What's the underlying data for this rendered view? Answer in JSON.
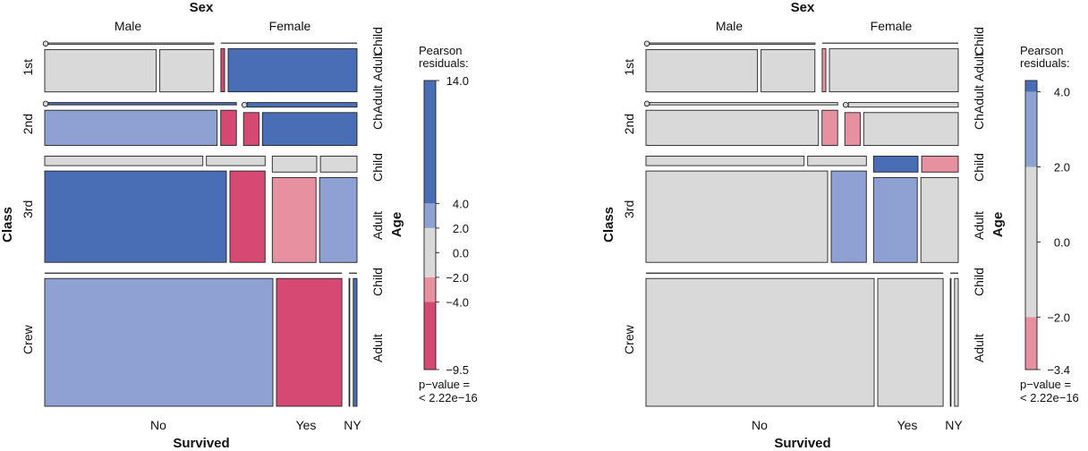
{
  "colors": {
    "pos_strong": "#4a6eb5",
    "pos_mid": "#8fa0d3",
    "neutral": "#d9d9d9",
    "neg_mid": "#e690a0",
    "neg_strong": "#d64972",
    "outline": "#222222"
  },
  "chart_data": [
    {
      "type": "mosaic",
      "title": "",
      "variables": {
        "top": "Sex",
        "left": "Class",
        "bottom": "Survived",
        "right": "Age"
      },
      "levels": {
        "Sex": [
          "Male",
          "Female"
        ],
        "Class": [
          "1st",
          "2nd",
          "3rd",
          "Crew"
        ],
        "Survived": [
          "No",
          "Yes"
        ],
        "Age": [
          "Child",
          "Adult"
        ]
      },
      "labels": {
        "sex": [
          "Male",
          "Female"
        ],
        "class": [
          "1st",
          "2nd",
          "3rd",
          "Crew"
        ],
        "survived": [
          "No",
          "Yes"
        ],
        "survived_small": "NY",
        "age": [
          "Child",
          "Adult",
          "Adult",
          "Ch",
          "Child",
          "Adult",
          "Child",
          "Adult"
        ]
      },
      "counts": {
        "1st": {
          "Male": {
            "Child": {
              "No": 0,
              "Yes": 5
            },
            "Adult": {
              "No": 118,
              "Yes": 57
            }
          },
          "Female": {
            "Child": {
              "No": 0,
              "Yes": 1
            },
            "Adult": {
              "No": 4,
              "Yes": 140
            }
          }
        },
        "2nd": {
          "Male": {
            "Child": {
              "No": 0,
              "Yes": 11
            },
            "Adult": {
              "No": 154,
              "Yes": 14
            }
          },
          "Female": {
            "Child": {
              "No": 0,
              "Yes": 13
            },
            "Adult": {
              "No": 13,
              "Yes": 80
            }
          }
        },
        "3rd": {
          "Male": {
            "Child": {
              "No": 35,
              "Yes": 13
            },
            "Adult": {
              "No": 387,
              "Yes": 75
            }
          },
          "Female": {
            "Child": {
              "No": 17,
              "Yes": 14
            },
            "Adult": {
              "No": 89,
              "Yes": 76
            }
          }
        },
        "Crew": {
          "Male": {
            "Child": {
              "No": 0,
              "Yes": 0
            },
            "Adult": {
              "No": 670,
              "Yes": 192
            }
          },
          "Female": {
            "Child": {
              "No": 0,
              "Yes": 0
            },
            "Adult": {
              "No": 3,
              "Yes": 20
            }
          }
        }
      },
      "shading": {
        "1st": {
          "Male": {
            "Child": [
              "neutral",
              "neutral"
            ],
            "Adult": [
              "neutral",
              "neutral"
            ]
          },
          "Female": {
            "Child": [
              "neutral",
              "neutral"
            ],
            "Adult": [
              "neg_strong",
              "pos_strong"
            ]
          }
        },
        "2nd": {
          "Male": {
            "Child": [
              "neutral",
              "pos_strong"
            ],
            "Adult": [
              "pos_mid",
              "neg_strong"
            ]
          },
          "Female": {
            "Child": [
              "neutral",
              "pos_strong"
            ],
            "Adult": [
              "neg_strong",
              "pos_strong"
            ]
          }
        },
        "3rd": {
          "Male": {
            "Child": [
              "neutral",
              "neutral"
            ],
            "Adult": [
              "pos_strong",
              "neg_strong"
            ]
          },
          "Female": {
            "Child": [
              "neutral",
              "neutral"
            ],
            "Adult": [
              "neg_mid",
              "pos_mid"
            ]
          }
        },
        "Crew": {
          "Male": {
            "Child": [
              "neutral",
              "neutral"
            ],
            "Adult": [
              "pos_mid",
              "neg_strong"
            ]
          },
          "Female": {
            "Child": [
              "neutral",
              "neutral"
            ],
            "Adult": [
              "neutral",
              "pos_strong"
            ]
          }
        }
      },
      "legend": {
        "title": [
          "Pearson",
          "residuals:"
        ],
        "min": -9.5,
        "max": 14.0,
        "ticks": [
          "14.0",
          "4.0",
          "2.0",
          "0.0",
          "−2.0",
          "−4.0",
          "−9.5"
        ],
        "tick_values": [
          14.0,
          4.0,
          2.0,
          0.0,
          -2.0,
          -4.0,
          -9.5
        ],
        "bands": [
          {
            "from": 4.0,
            "to": 14.0,
            "color": "pos_strong"
          },
          {
            "from": 2.0,
            "to": 4.0,
            "color": "pos_mid"
          },
          {
            "from": -2.0,
            "to": 2.0,
            "color": "neutral"
          },
          {
            "from": -4.0,
            "to": -2.0,
            "color": "neg_mid"
          },
          {
            "from": -9.5,
            "to": -4.0,
            "color": "neg_strong"
          }
        ],
        "pvalue": [
          "p−value =",
          "< 2.22e−16"
        ]
      }
    },
    {
      "type": "mosaic",
      "title": "",
      "variables": {
        "top": "Sex",
        "left": "Class",
        "bottom": "Survived",
        "right": "Age"
      },
      "levels": {
        "Sex": [
          "Male",
          "Female"
        ],
        "Class": [
          "1st",
          "2nd",
          "3rd",
          "Crew"
        ],
        "Survived": [
          "No",
          "Yes"
        ],
        "Age": [
          "Child",
          "Adult"
        ]
      },
      "labels": {
        "sex": [
          "Male",
          "Female"
        ],
        "class": [
          "1st",
          "2nd",
          "3rd",
          "Crew"
        ],
        "survived": [
          "No",
          "Yes"
        ],
        "survived_small": "NY",
        "age": [
          "Child",
          "Adult",
          "Adult",
          "Ch",
          "Child",
          "Adult",
          "Child",
          "Adult"
        ]
      },
      "counts": {
        "1st": {
          "Male": {
            "Child": {
              "No": 0,
              "Yes": 5
            },
            "Adult": {
              "No": 118,
              "Yes": 57
            }
          },
          "Female": {
            "Child": {
              "No": 0,
              "Yes": 1
            },
            "Adult": {
              "No": 4,
              "Yes": 140
            }
          }
        },
        "2nd": {
          "Male": {
            "Child": {
              "No": 0,
              "Yes": 11
            },
            "Adult": {
              "No": 154,
              "Yes": 14
            }
          },
          "Female": {
            "Child": {
              "No": 0,
              "Yes": 13
            },
            "Adult": {
              "No": 13,
              "Yes": 80
            }
          }
        },
        "3rd": {
          "Male": {
            "Child": {
              "No": 35,
              "Yes": 13
            },
            "Adult": {
              "No": 387,
              "Yes": 75
            }
          },
          "Female": {
            "Child": {
              "No": 17,
              "Yes": 14
            },
            "Adult": {
              "No": 89,
              "Yes": 76
            }
          }
        },
        "Crew": {
          "Male": {
            "Child": {
              "No": 0,
              "Yes": 0
            },
            "Adult": {
              "No": 670,
              "Yes": 192
            }
          },
          "Female": {
            "Child": {
              "No": 0,
              "Yes": 0
            },
            "Adult": {
              "No": 3,
              "Yes": 20
            }
          }
        }
      },
      "shading": {
        "1st": {
          "Male": {
            "Child": [
              "neutral",
              "neutral"
            ],
            "Adult": [
              "neutral",
              "neutral"
            ]
          },
          "Female": {
            "Child": [
              "neutral",
              "neutral"
            ],
            "Adult": [
              "neg_mid",
              "neutral"
            ]
          }
        },
        "2nd": {
          "Male": {
            "Child": [
              "neutral",
              "neutral"
            ],
            "Adult": [
              "neutral",
              "neg_mid"
            ]
          },
          "Female": {
            "Child": [
              "neutral",
              "neutral"
            ],
            "Adult": [
              "neg_mid",
              "neutral"
            ]
          }
        },
        "3rd": {
          "Male": {
            "Child": [
              "neutral",
              "neutral"
            ],
            "Adult": [
              "neutral",
              "pos_mid"
            ]
          },
          "Female": {
            "Child": [
              "pos_strong",
              "neg_mid"
            ],
            "Adult": [
              "pos_mid",
              "neutral"
            ]
          }
        },
        "Crew": {
          "Male": {
            "Child": [
              "neutral",
              "neutral"
            ],
            "Adult": [
              "neutral",
              "neutral"
            ]
          },
          "Female": {
            "Child": [
              "neutral",
              "neutral"
            ],
            "Adult": [
              "neutral",
              "neutral"
            ]
          }
        }
      },
      "legend": {
        "title": [
          "Pearson",
          "residuals:"
        ],
        "min": -3.4,
        "max": 4.0,
        "ticks": [
          "4.0",
          "2.0",
          "0.0",
          "−2.0",
          "−3.4"
        ],
        "tick_values": [
          4.0,
          2.0,
          0.0,
          -2.0,
          -3.4
        ],
        "bands": [
          {
            "from": 4.0,
            "to": 4.3,
            "color": "pos_strong"
          },
          {
            "from": 2.0,
            "to": 4.0,
            "color": "pos_mid"
          },
          {
            "from": -2.0,
            "to": 2.0,
            "color": "neutral"
          },
          {
            "from": -3.4,
            "to": -2.0,
            "color": "neg_mid"
          }
        ],
        "pvalue": [
          "p−value =",
          "< 2.22e−16"
        ]
      }
    }
  ]
}
